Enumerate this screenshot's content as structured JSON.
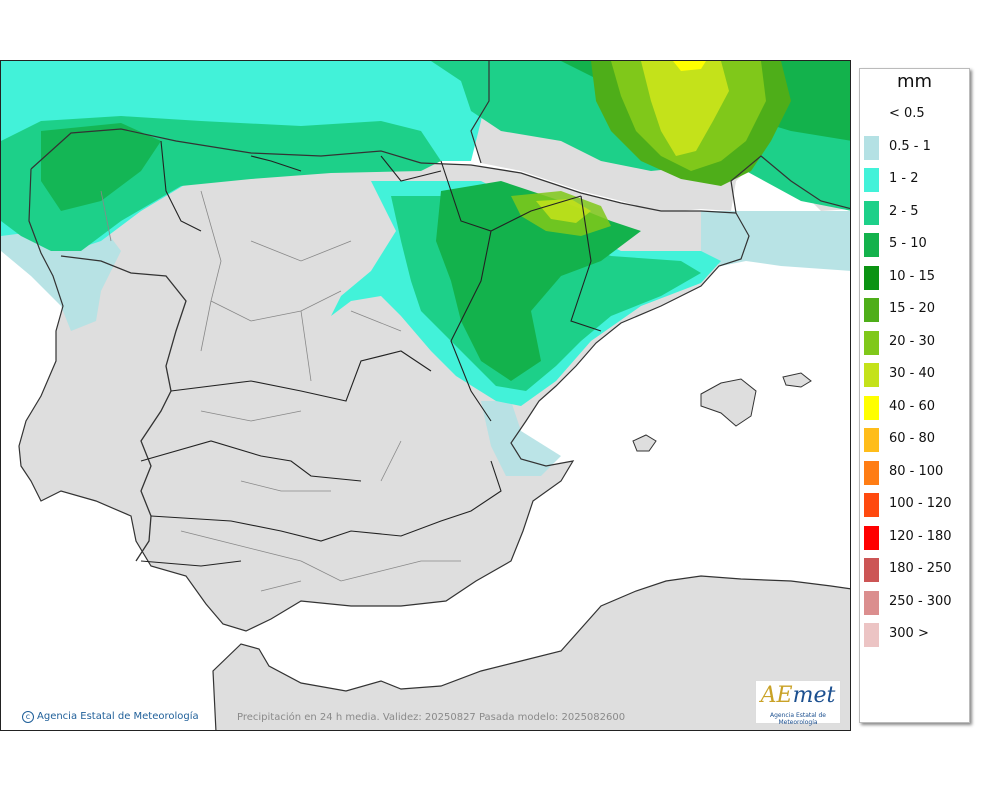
{
  "legend": {
    "unit": "mm",
    "bins": [
      {
        "label": "< 0.5",
        "color": "#ffffff"
      },
      {
        "label": "0.5 - 1",
        "color": "#b4e1e4"
      },
      {
        "label": "1 - 2",
        "color": "#42f2d9"
      },
      {
        "label": "2 - 5",
        "color": "#1dd089"
      },
      {
        "label": "5 - 10",
        "color": "#13b24c"
      },
      {
        "label": "10 - 15",
        "color": "#0b9313"
      },
      {
        "label": "15 - 20",
        "color": "#4eae19"
      },
      {
        "label": "20 - 30",
        "color": "#80c81a"
      },
      {
        "label": "30 - 40",
        "color": "#c4e21a"
      },
      {
        "label": "40 - 60",
        "color": "#ffff00"
      },
      {
        "label": "60 - 80",
        "color": "#ffbd1a"
      },
      {
        "label": "80 - 100",
        "color": "#ff7d14"
      },
      {
        "label": "100 - 120",
        "color": "#ff4a0f"
      },
      {
        "label": "120 - 180",
        "color": "#ff0000"
      },
      {
        "label": "180 - 250",
        "color": "#cc5555"
      },
      {
        "label": "250 - 300",
        "color": "#db8e8e"
      },
      {
        "label": "300 >",
        "color": "#ecc4c4"
      }
    ]
  },
  "footer": {
    "credit": "Agencia Estatal de Meteorología",
    "caption": "Precipitación en 24 h media. Validez: 20250827 Pasada modelo: 2025082600"
  },
  "logo": {
    "text_a": "AE",
    "text_b": "met",
    "subtitle": "Agencia Estatal de Meteorología"
  },
  "map_colors": {
    "sea": "#ffffff",
    "land": "#dedede",
    "border": "#333333",
    "province_line": "#888888"
  }
}
